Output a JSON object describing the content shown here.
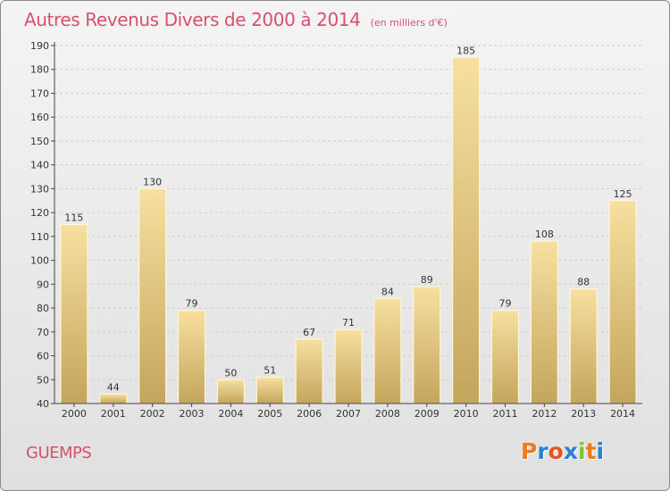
{
  "title": "Autres Revenus Divers de 2000 à 2014",
  "subtitle": "(en milliers d'€)",
  "location": "GUEMPS",
  "brand": {
    "text": "Proxiti",
    "letter_colors": [
      "#f07a1c",
      "#2f7fd0",
      "#e8531f",
      "#2f7fd0",
      "#7cc23a",
      "#f07a1c",
      "#2f7fd0"
    ]
  },
  "colors": {
    "title": "#d8506e",
    "bar_light": "#f7e0a0",
    "bar_dark": "#c4a55c",
    "bar_border": "#fff5d8",
    "axis": "#444444",
    "grid": "#cfcfcf"
  },
  "chart_data": {
    "type": "bar",
    "categories": [
      "2000",
      "2001",
      "2002",
      "2003",
      "2004",
      "2005",
      "2006",
      "2007",
      "2008",
      "2009",
      "2010",
      "2011",
      "2012",
      "2013",
      "2014"
    ],
    "values": [
      115,
      44,
      130,
      79,
      50,
      51,
      67,
      71,
      84,
      89,
      185,
      79,
      108,
      88,
      125
    ],
    "ylim": [
      40,
      190
    ],
    "yticks": [
      40,
      50,
      60,
      70,
      80,
      90,
      100,
      110,
      120,
      130,
      140,
      150,
      160,
      170,
      180,
      190
    ],
    "grid": "horizontal dashed",
    "data_labels": true
  }
}
